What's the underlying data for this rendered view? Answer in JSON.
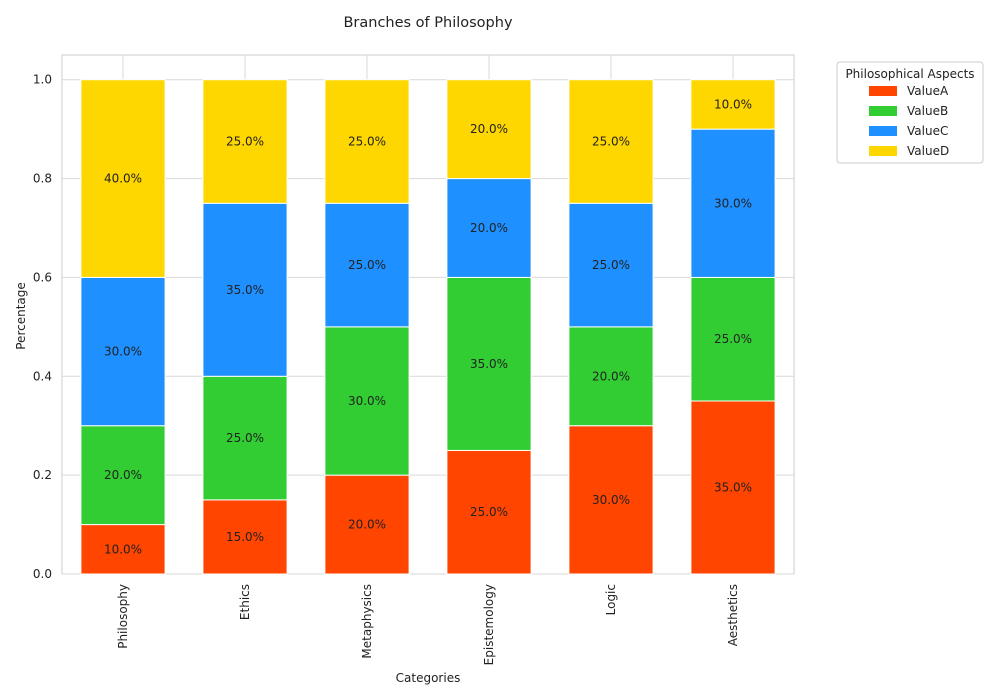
{
  "chart_data": {
    "type": "bar",
    "stacked": true,
    "title": "Branches of Philosophy",
    "xlabel": "Categories",
    "ylabel": "Percentage",
    "ylim": [
      0,
      1.05
    ],
    "yticks": [
      "0.0",
      "0.2",
      "0.4",
      "0.6",
      "0.8",
      "1.0"
    ],
    "categories": [
      "Philosophy",
      "Ethics",
      "Metaphysics",
      "Epistemology",
      "Logic",
      "Aesthetics"
    ],
    "series": [
      {
        "name": "ValueA",
        "color": "#FF4500",
        "values": [
          0.1,
          0.15,
          0.2,
          0.25,
          0.3,
          0.35
        ],
        "labels": [
          "10.0%",
          "15.0%",
          "20.0%",
          "25.0%",
          "30.0%",
          "35.0%"
        ]
      },
      {
        "name": "ValueB",
        "color": "#32CD32",
        "values": [
          0.2,
          0.25,
          0.3,
          0.35,
          0.2,
          0.25
        ],
        "labels": [
          "20.0%",
          "25.0%",
          "30.0%",
          "35.0%",
          "20.0%",
          "25.0%"
        ]
      },
      {
        "name": "ValueC",
        "color": "#1E90FF",
        "values": [
          0.3,
          0.35,
          0.25,
          0.2,
          0.25,
          0.3
        ],
        "labels": [
          "30.0%",
          "35.0%",
          "25.0%",
          "20.0%",
          "25.0%",
          "30.0%"
        ]
      },
      {
        "name": "ValueD",
        "color": "#FFD700",
        "values": [
          0.4,
          0.25,
          0.25,
          0.2,
          0.25,
          0.1
        ],
        "labels": [
          "40.0%",
          "25.0%",
          "25.0%",
          "20.0%",
          "25.0%",
          "10.0%"
        ]
      }
    ],
    "legend": {
      "title": "Philosophical Aspects",
      "placement": "outside-top-right"
    },
    "grid": true
  }
}
